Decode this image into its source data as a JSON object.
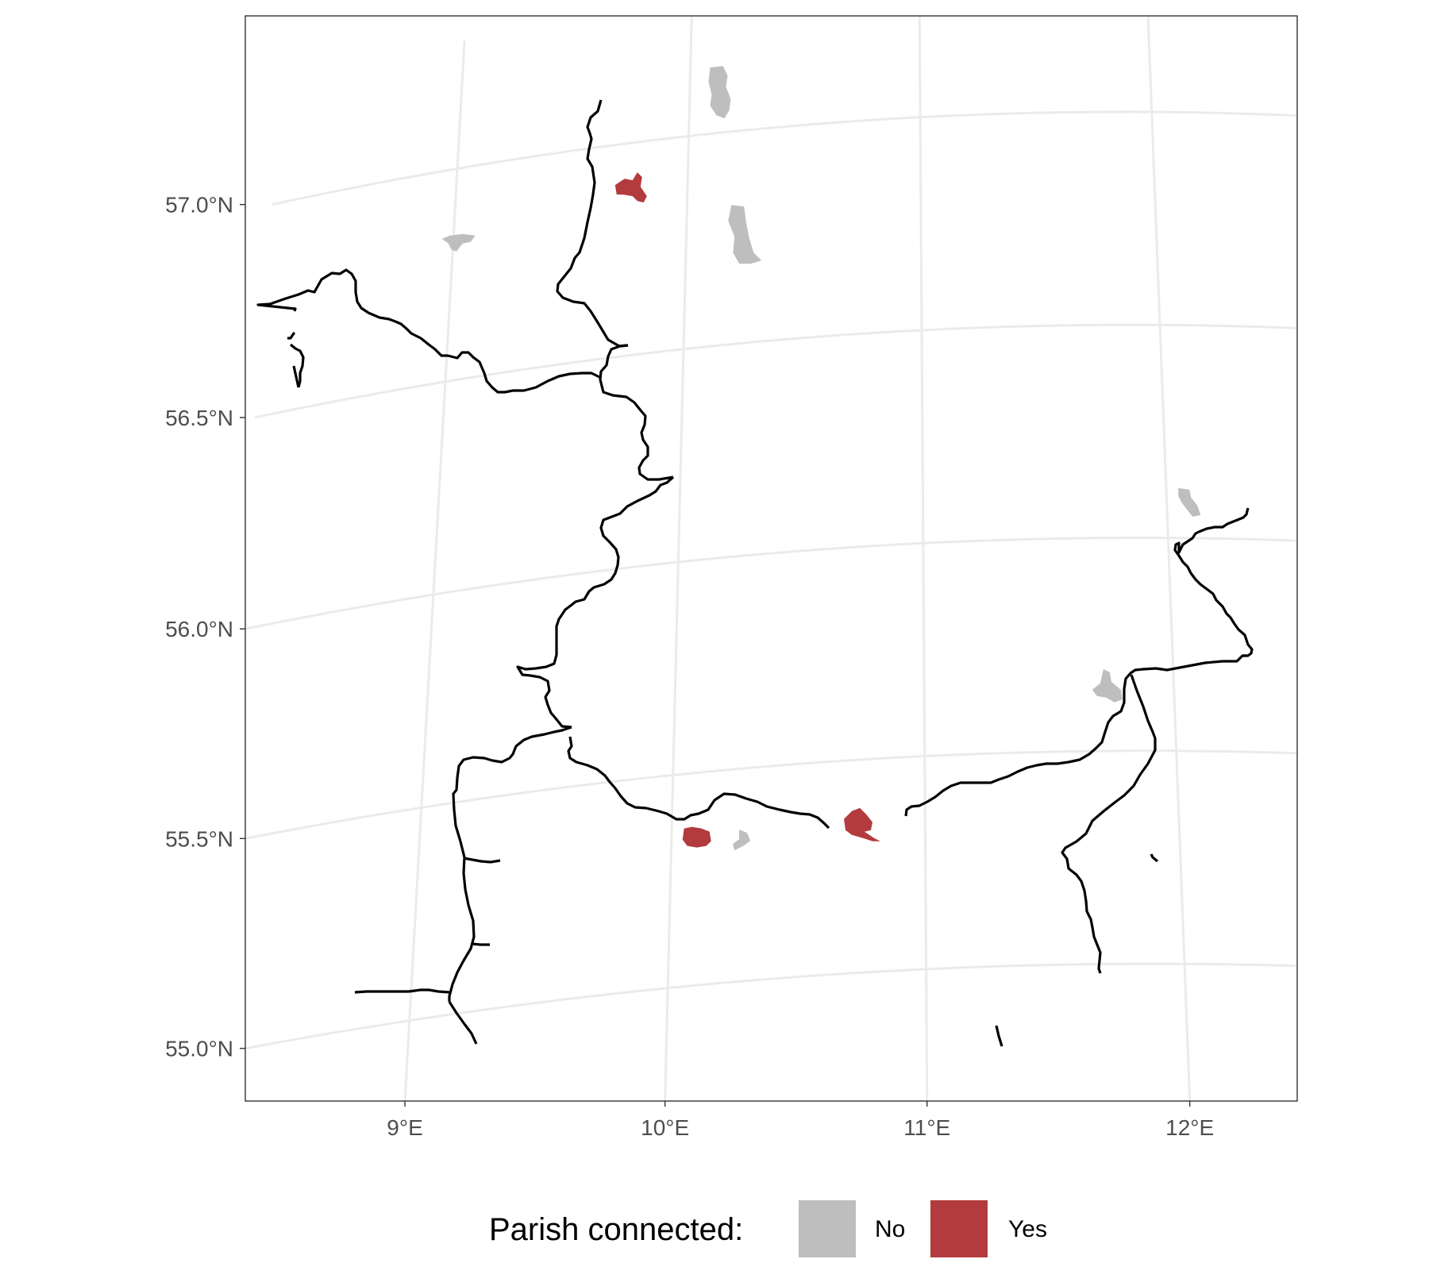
{
  "map": {
    "colors": {
      "connected": "#b33b3e",
      "not_connected": "#bebebe",
      "road": "#000000",
      "grid": "#ebebeb",
      "frame": "#333333"
    },
    "lon_ticks": [
      {
        "value": 9,
        "label": "9°E"
      },
      {
        "value": 10,
        "label": "10°E"
      },
      {
        "value": 11,
        "label": "11°E"
      },
      {
        "value": 12,
        "label": "12°E"
      }
    ],
    "lat_ticks": [
      {
        "value": 55.0,
        "label": "55.0°N"
      },
      {
        "value": 55.5,
        "label": "55.5°N"
      },
      {
        "value": 56.0,
        "label": "56.0°N"
      },
      {
        "value": 56.5,
        "label": "56.5°N"
      },
      {
        "value": 57.0,
        "label": "57.0°N"
      }
    ],
    "parishes": [
      {
        "connected": "Yes",
        "lon": 9.75,
        "lat": 56.89
      },
      {
        "connected": "Yes",
        "lon": 10.1,
        "lat": 55.35
      },
      {
        "connected": "Yes",
        "lon": 10.73,
        "lat": 55.35
      },
      {
        "connected": "No",
        "lon": 9.02,
        "lat": 56.83
      },
      {
        "connected": "No",
        "lon": 10.13,
        "lat": 57.09
      },
      {
        "connected": "No",
        "lon": 10.22,
        "lat": 56.74
      },
      {
        "connected": "No",
        "lon": 10.28,
        "lat": 55.33
      },
      {
        "connected": "No",
        "lon": 11.73,
        "lat": 55.64
      },
      {
        "connected": "No",
        "lon": 12.08,
        "lat": 56.08
      }
    ]
  },
  "legend": {
    "title": "Parish connected:",
    "items": [
      {
        "label": "No",
        "color": "#bebebe"
      },
      {
        "label": "Yes",
        "color": "#b33b3e"
      }
    ]
  }
}
